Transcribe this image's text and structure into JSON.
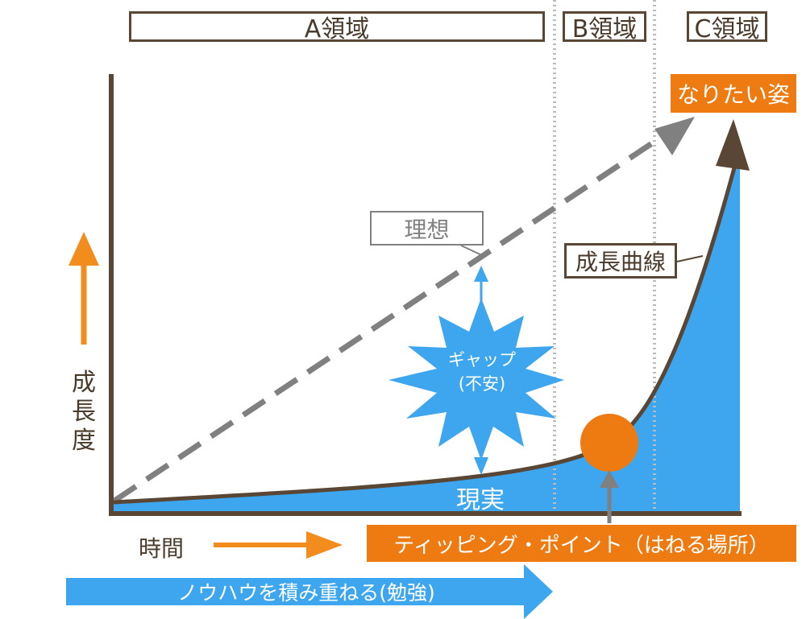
{
  "regions": {
    "a": "A領域",
    "b": "B領域",
    "c": "C領域"
  },
  "goal_label": "なりたい姿",
  "ideal_label": "理想",
  "curve_label": "成長曲線",
  "gap_label": {
    "line1": "ギャップ",
    "line2": "(不安)"
  },
  "reality_label": "現実",
  "y_axis_label": "成長度",
  "x_axis_label": "時間",
  "tipping_point_label": "ティッピング・ポイント（はねる場所）",
  "knowhow_label": "ノウハウを積み重ねる(勉強)",
  "colors": {
    "axis": "#5a4634",
    "fill_blue": "#3ea6ee",
    "orange": "#ee7a12",
    "dashed_gray": "#808080",
    "guide_gray": "#bbbbbb"
  }
}
